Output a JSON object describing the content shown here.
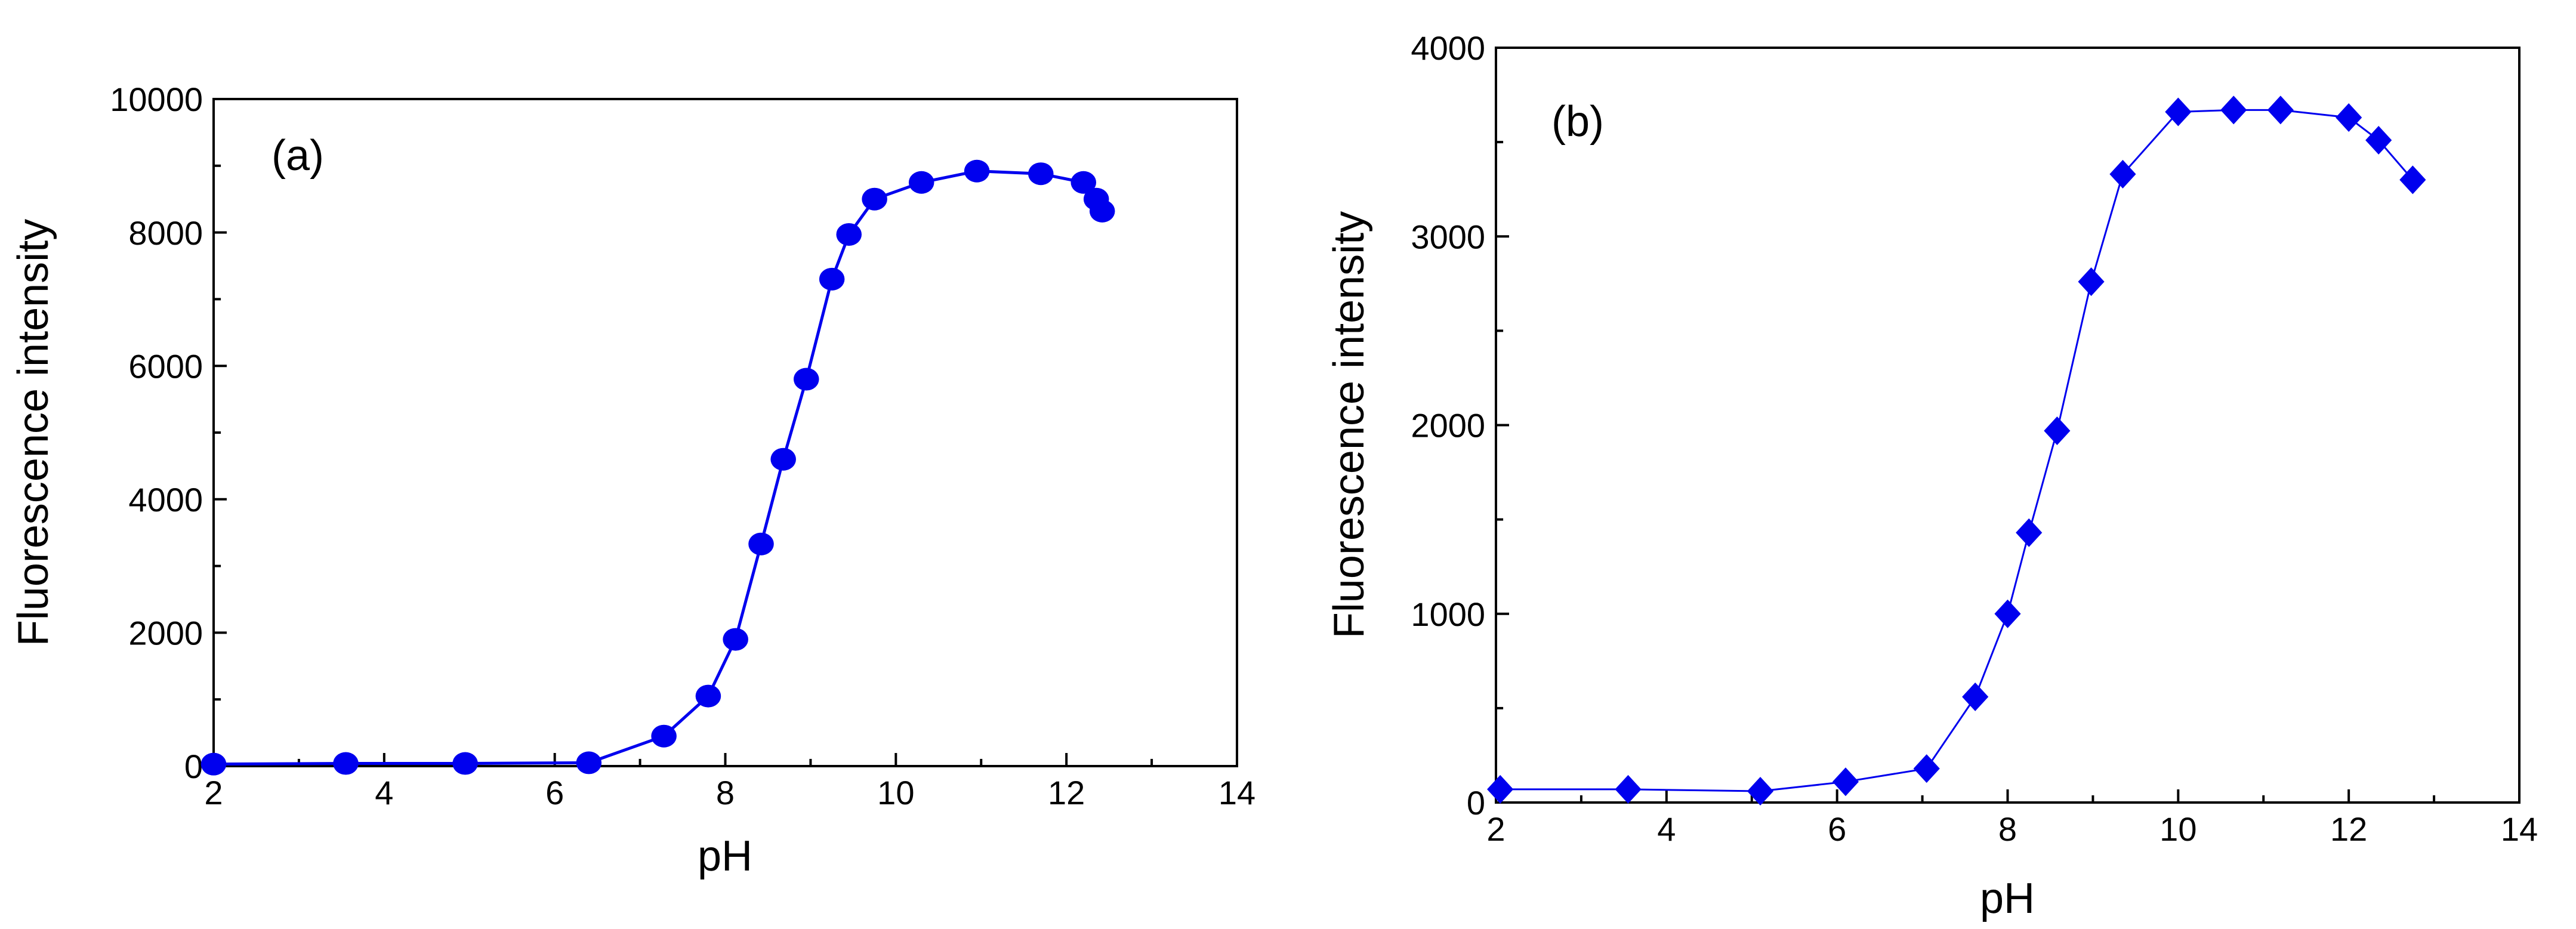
{
  "chart_data": [
    {
      "type": "line",
      "panel_label": "(a)",
      "xlabel": "pH",
      "ylabel": "Fluorescence intensity",
      "xlim": [
        2,
        14
      ],
      "ylim": [
        0,
        10000
      ],
      "x_ticks": [
        2,
        4,
        6,
        8,
        10,
        12,
        14
      ],
      "y_ticks": [
        0,
        2000,
        4000,
        6000,
        8000,
        10000
      ],
      "x_tick_labels": [
        "2",
        "4",
        "6",
        "8",
        "10",
        "12",
        "14"
      ],
      "y_tick_labels": [
        "0",
        "2000",
        "4000",
        "6000",
        "8000",
        "10000"
      ],
      "grid": false,
      "marker": "circle",
      "color": "#0000ee",
      "series": [
        {
          "name": "Fluorescence intensity",
          "x": [
            2.0,
            3.55,
            4.95,
            6.4,
            7.28,
            7.8,
            8.12,
            8.42,
            8.68,
            8.95,
            9.25,
            9.45,
            9.75,
            10.3,
            10.95,
            11.7,
            12.2,
            12.35,
            12.42
          ],
          "y": [
            30,
            40,
            40,
            50,
            450,
            1050,
            1900,
            3330,
            4600,
            5800,
            7300,
            7970,
            8500,
            8750,
            8920,
            8880,
            8750,
            8500,
            8320
          ]
        }
      ]
    },
    {
      "type": "line",
      "panel_label": "(b)",
      "xlabel": "pH",
      "ylabel": "Fluorescence intensity",
      "xlim": [
        2,
        14
      ],
      "ylim": [
        0,
        4000
      ],
      "x_ticks": [
        2,
        4,
        6,
        8,
        10,
        12,
        14
      ],
      "y_ticks": [
        0,
        1000,
        2000,
        3000,
        4000
      ],
      "x_tick_labels": [
        "2",
        "4",
        "6",
        "8",
        "10",
        "12",
        "14"
      ],
      "y_tick_labels": [
        "0",
        "1000",
        "2000",
        "3000",
        "4000"
      ],
      "grid": false,
      "marker": "diamond",
      "color": "#0000ee",
      "series": [
        {
          "name": "Fluorescence intensity",
          "x": [
            2.05,
            3.55,
            5.1,
            6.1,
            7.05,
            7.62,
            8.0,
            8.25,
            8.58,
            8.98,
            9.35,
            10.0,
            10.65,
            11.2,
            12.0,
            12.35,
            12.75
          ],
          "y": [
            70,
            70,
            60,
            110,
            180,
            560,
            1000,
            1430,
            1970,
            2760,
            3330,
            3660,
            3670,
            3670,
            3630,
            3510,
            3300
          ]
        }
      ]
    }
  ]
}
